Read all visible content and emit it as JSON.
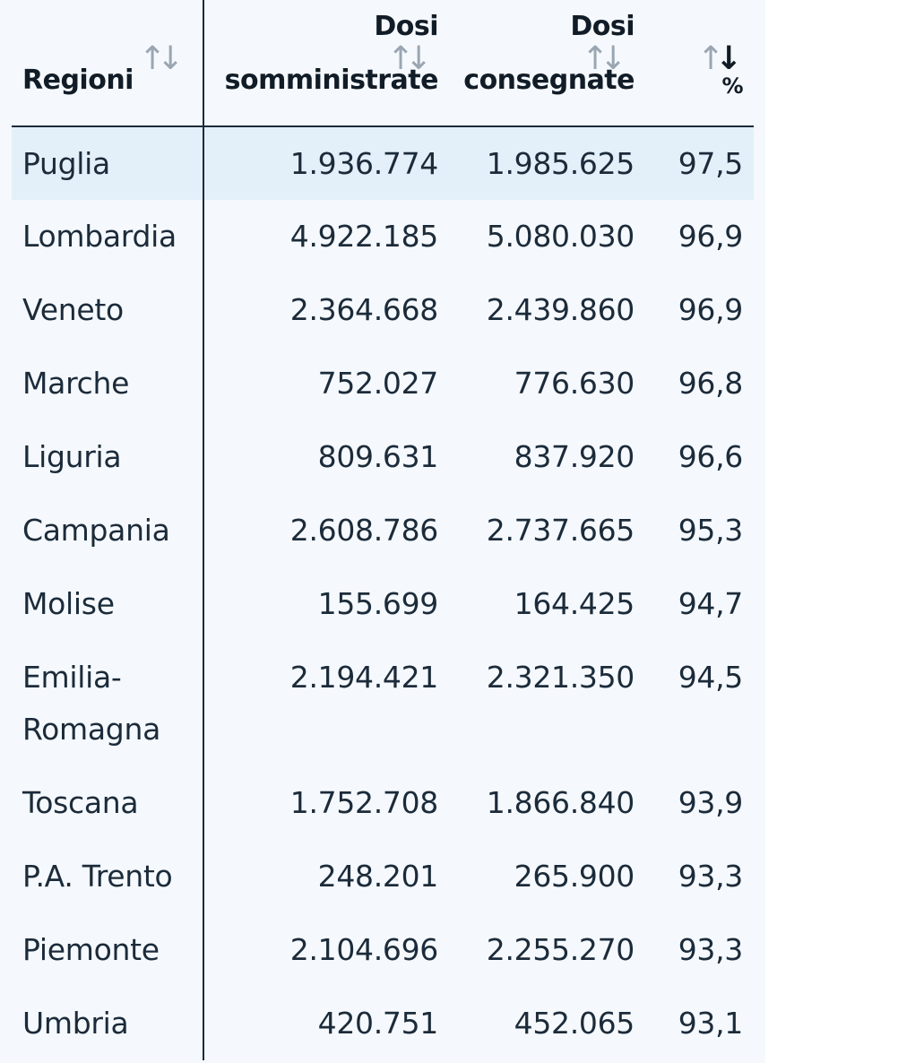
{
  "table": {
    "headers": {
      "region": "Regioni",
      "administered_line1": "Dosi",
      "administered_line2": "somministrate",
      "delivered_line1": "Dosi",
      "delivered_line2": "consegnate",
      "percent": "%"
    },
    "sort": {
      "column": "percent",
      "direction": "descending"
    },
    "rows": [
      {
        "region": "Puglia",
        "administered": "1.936.774",
        "delivered": "1.985.625",
        "percent": "97,5"
      },
      {
        "region": "Lombardia",
        "administered": "4.922.185",
        "delivered": "5.080.030",
        "percent": "96,9"
      },
      {
        "region": "Veneto",
        "administered": "2.364.668",
        "delivered": "2.439.860",
        "percent": "96,9"
      },
      {
        "region": "Marche",
        "administered": "752.027",
        "delivered": "776.630",
        "percent": "96,8"
      },
      {
        "region": "Liguria",
        "administered": "809.631",
        "delivered": "837.920",
        "percent": "96,6"
      },
      {
        "region": "Campania",
        "administered": "2.608.786",
        "delivered": "2.737.665",
        "percent": "95,3"
      },
      {
        "region": "Molise",
        "administered": "155.699",
        "delivered": "164.425",
        "percent": "94,7"
      },
      {
        "region": "Emilia-Romagna",
        "administered": "2.194.421",
        "delivered": "2.321.350",
        "percent": "94,5"
      },
      {
        "region": "Toscana",
        "administered": "1.752.708",
        "delivered": "1.866.840",
        "percent": "93,9"
      },
      {
        "region": "P.A. Trento",
        "administered": "248.201",
        "delivered": "265.900",
        "percent": "93,3"
      },
      {
        "region": "Piemonte",
        "administered": "2.104.696",
        "delivered": "2.255.270",
        "percent": "93,3"
      },
      {
        "region": "Umbria",
        "administered": "420.751",
        "delivered": "452.065",
        "percent": "93,1"
      }
    ],
    "colors": {
      "highlight_row": "#e3f0f9",
      "panel_background": "#f5f9fd",
      "text": "#1c2b3a",
      "sort_icon_inactive": "#9aa6b2"
    }
  }
}
